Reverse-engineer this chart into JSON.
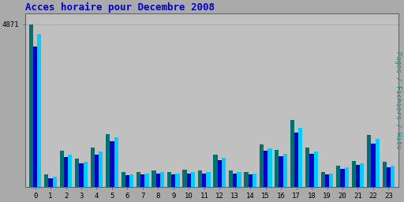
{
  "title": "Acces horaire pour Decembre 2008",
  "title_color": "#0000cc",
  "ylabel": "Pages / Fichiers / Hits",
  "ylabel_color": "#009999",
  "background_color": "#aaaaaa",
  "plot_bg_color": "#c0c0c0",
  "hours": [
    0,
    1,
    2,
    3,
    4,
    5,
    6,
    7,
    8,
    9,
    10,
    11,
    12,
    13,
    14,
    15,
    16,
    17,
    18,
    19,
    20,
    21,
    22,
    23
  ],
  "pages": [
    4871,
    360,
    1080,
    850,
    1180,
    1580,
    430,
    450,
    490,
    450,
    500,
    490,
    950,
    480,
    450,
    1280,
    1100,
    2000,
    1180,
    440,
    640,
    760,
    1560,
    740
  ],
  "fichiers": [
    4200,
    240,
    880,
    700,
    960,
    1360,
    340,
    360,
    390,
    360,
    400,
    390,
    800,
    390,
    360,
    1080,
    920,
    1620,
    980,
    360,
    530,
    650,
    1300,
    590
  ],
  "hits": [
    4580,
    290,
    970,
    750,
    1050,
    1480,
    380,
    400,
    430,
    390,
    440,
    430,
    870,
    430,
    400,
    1160,
    990,
    1760,
    1050,
    400,
    580,
    700,
    1430,
    640
  ],
  "color_pages": "#007070",
  "color_fichiers": "#0000cc",
  "color_hits": "#00ccff",
  "bar_width": 0.27,
  "ylim": [
    0,
    5200
  ],
  "yticks": [
    4871
  ],
  "ytick_labels": [
    "4871"
  ],
  "font_family": "monospace",
  "title_fontsize": 9,
  "tick_fontsize": 6.5,
  "ylabel_fontsize": 6.5
}
